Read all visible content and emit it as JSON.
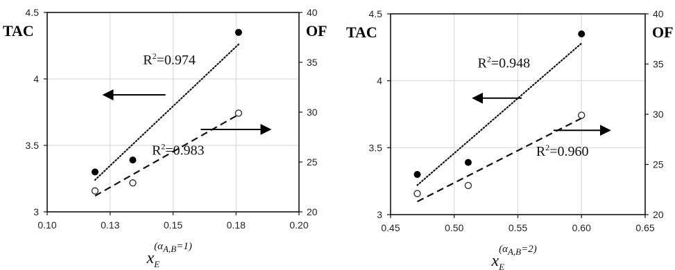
{
  "chart_data": [
    {
      "type": "scatter",
      "left_axis_title": "TAC",
      "right_axis_title": "OF",
      "x_ticks": [
        "0.10",
        "0.13",
        "0.15",
        "0.18",
        "0.20"
      ],
      "xlim": [
        0.1,
        0.2
      ],
      "ylim_left": [
        3,
        4.5
      ],
      "ylim_right": [
        20,
        40
      ],
      "left_ticks": [
        "3",
        "3.5",
        "4",
        "4.5"
      ],
      "right_ticks": [
        "20",
        "25",
        "30",
        "35",
        "40"
      ],
      "xlabel": {
        "base": "x",
        "sub": "E",
        "sup_open": "(",
        "sup_greek": "α",
        "sup_greek_sub": "A,B",
        "sup_tail": "=1)"
      },
      "grid": true,
      "series": [
        {
          "axis": "left",
          "marker": "filled",
          "x": [
            0.119,
            0.134,
            0.176
          ],
          "y": [
            3.3,
            3.39,
            4.35
          ]
        },
        {
          "axis": "right",
          "marker": "hollow",
          "x": [
            0.119,
            0.134,
            0.176
          ],
          "y": [
            22.1,
            22.9,
            29.9
          ]
        }
      ],
      "trendlines": [
        {
          "axis": "left",
          "style": "dotted",
          "x": [
            0.119,
            0.176
          ],
          "y": [
            3.24,
            4.26
          ]
        },
        {
          "axis": "right",
          "style": "dashed",
          "x": [
            0.119,
            0.177
          ],
          "y": [
            21.6,
            29.9
          ]
        }
      ],
      "annotations": [
        {
          "prefix": "R",
          "sup": "2",
          "text": "=0.974",
          "x": 0.1485,
          "y_left": 4.11
        },
        {
          "prefix": "R",
          "sup": "2",
          "text": "=0.983",
          "x": 0.152,
          "y_left": 3.43
        }
      ],
      "arrows": [
        {
          "dir": "left",
          "x_from": 0.147,
          "x_to": 0.123,
          "y_left": 3.88
        },
        {
          "dir": "right",
          "x_from": 0.161,
          "x_to": 0.188,
          "y_left": 3.62
        }
      ]
    },
    {
      "type": "scatter",
      "left_axis_title": "TAC",
      "right_axis_title": "OF",
      "x_ticks": [
        "0.45",
        "0.50",
        "0.55",
        "0.60",
        "0.65"
      ],
      "xlim": [
        0.45,
        0.65
      ],
      "ylim_left": [
        3,
        4.5
      ],
      "ylim_right": [
        20,
        40
      ],
      "left_ticks": [
        "3",
        "3.5",
        "4",
        "4.5"
      ],
      "right_ticks": [
        "20",
        "25",
        "30",
        "35",
        "40"
      ],
      "xlabel": {
        "base": "x",
        "sub": "E",
        "sup_open": "(",
        "sup_greek": "α",
        "sup_greek_sub": "A,B",
        "sup_tail": "=2)"
      },
      "grid": true,
      "series": [
        {
          "axis": "left",
          "marker": "filled",
          "x": [
            0.471,
            0.511,
            0.6
          ],
          "y": [
            3.3,
            3.39,
            4.35
          ]
        },
        {
          "axis": "right",
          "marker": "hollow",
          "x": [
            0.471,
            0.511,
            0.6
          ],
          "y": [
            22.1,
            22.9,
            29.9
          ]
        }
      ],
      "trendlines": [
        {
          "axis": "left",
          "style": "dotted",
          "x": [
            0.471,
            0.6
          ],
          "y": [
            3.22,
            4.28
          ]
        },
        {
          "axis": "right",
          "style": "dashed",
          "x": [
            0.471,
            0.6
          ],
          "y": [
            21.3,
            29.6
          ]
        }
      ],
      "annotations": [
        {
          "prefix": "R",
          "sup": "2",
          "text": "=0.948",
          "x": 0.539,
          "y_left": 4.1
        },
        {
          "prefix": "R",
          "sup": "2",
          "text": "=0.960",
          "x": 0.585,
          "y_left": 3.44
        }
      ],
      "arrows": [
        {
          "dir": "left",
          "x_from": 0.553,
          "x_to": 0.516,
          "y_left": 3.87
        },
        {
          "dir": "right",
          "x_from": 0.578,
          "x_to": 0.621,
          "y_left": 3.63
        }
      ]
    }
  ]
}
